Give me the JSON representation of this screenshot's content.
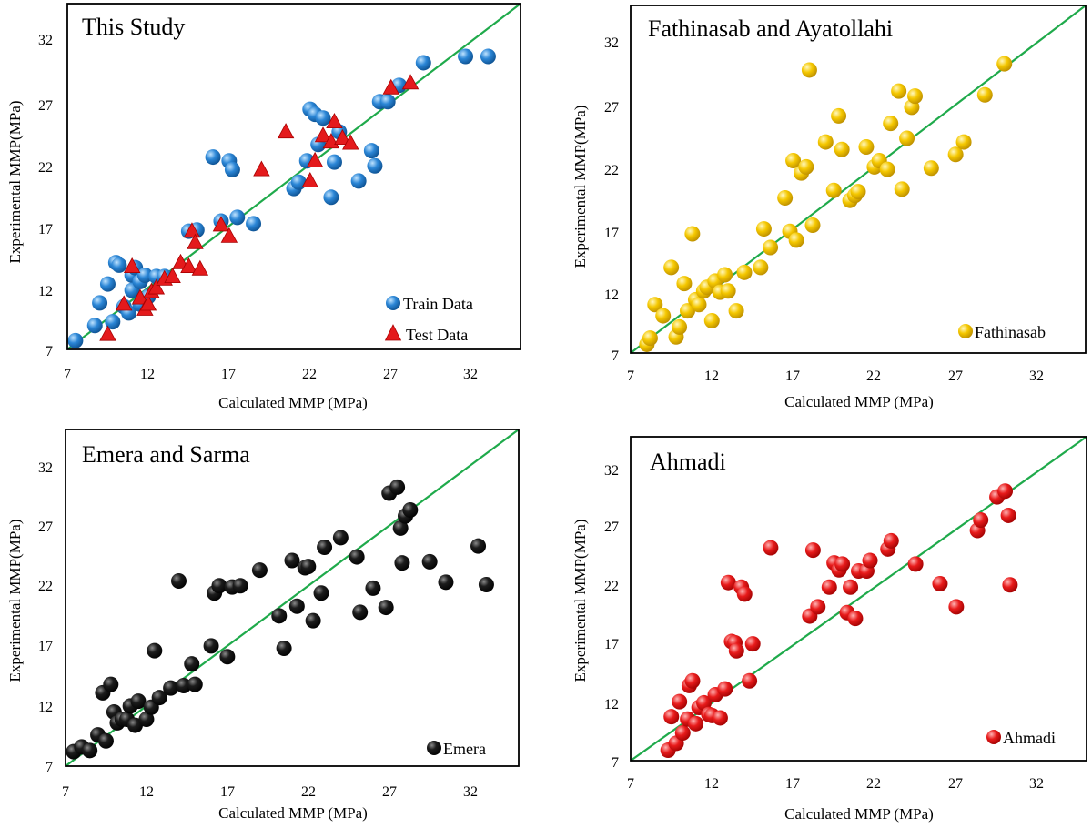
{
  "colors": {
    "train": "#1f78c8",
    "test": "#e41a1c",
    "fathinasab": "#f2c200",
    "emera": "#0a0a0a",
    "ahmadi": "#e41a1c",
    "diagonal": "#1faa4b"
  },
  "chart_data": [
    {
      "type": "scatter",
      "title": "This Study",
      "xlabel": "Calculated MMP (MPa)",
      "ylabel": "Experimental MMP(MPa)",
      "xlim": [
        7,
        35
      ],
      "ylim": [
        7,
        34.5
      ],
      "xticks": [
        "7",
        "12",
        "17",
        "22",
        "27",
        "32"
      ],
      "yticks": [
        "7",
        "12",
        "17",
        "22",
        "27",
        "32"
      ],
      "reference_line": "y = x",
      "series": [
        {
          "name": "Train Data",
          "marker": "circle",
          "color": "#1f78c8",
          "x": [
            7.5,
            8.7,
            9.0,
            9.5,
            9.8,
            10.0,
            10.2,
            10.5,
            10.8,
            11.0,
            11.2,
            11.0,
            11.5,
            11.8,
            12.0,
            11.5,
            12.5,
            13.0,
            14.5,
            15.0,
            16.0,
            16.5,
            17.0,
            17.2,
            17.5,
            18.5,
            21.0,
            21.3,
            21.8,
            22.0,
            22.3,
            22.5,
            22.8,
            23.3,
            23.5,
            23.8,
            25.0,
            25.8,
            26.0,
            26.3,
            26.8,
            27.5,
            29.0,
            31.6,
            33.0
          ],
          "y": [
            7.7,
            8.9,
            10.7,
            12.2,
            9.2,
            13.9,
            13.7,
            10.4,
            9.9,
            12.9,
            13.5,
            11.7,
            12.4,
            12.9,
            11.2,
            10.6,
            12.8,
            12.8,
            16.4,
            16.5,
            22.3,
            17.2,
            22.0,
            21.3,
            17.5,
            17.0,
            19.8,
            20.3,
            22.0,
            26.1,
            25.7,
            23.3,
            25.4,
            19.1,
            21.9,
            24.3,
            20.4,
            22.8,
            21.6,
            26.7,
            26.7,
            28.0,
            29.8,
            30.3,
            30.3
          ]
        },
        {
          "name": "Test Data",
          "marker": "triangle",
          "color": "#e41a1c",
          "x": [
            9.5,
            10.5,
            11.0,
            11.5,
            11.8,
            12.0,
            12.2,
            12.5,
            13.0,
            13.5,
            14.0,
            14.5,
            14.7,
            14.9,
            15.2,
            16.5,
            17.0,
            19.0,
            20.5,
            22.0,
            22.3,
            22.8,
            23.3,
            23.5,
            24.0,
            24.5,
            27.0,
            28.2
          ],
          "y": [
            8.2,
            10.6,
            13.6,
            11.1,
            10.2,
            10.6,
            11.6,
            11.9,
            12.6,
            12.8,
            13.9,
            13.6,
            16.4,
            15.5,
            13.4,
            16.9,
            16.0,
            21.3,
            24.3,
            20.4,
            22.0,
            24.0,
            23.5,
            25.1,
            23.8,
            23.4,
            27.8,
            28.2
          ]
        }
      ]
    },
    {
      "type": "scatter",
      "title": "Fathinasab and Ayatollahi",
      "xlabel": "Calculated MMP (MPa)",
      "ylabel": "Experimental MMP(MPa)",
      "xlim": [
        7,
        35
      ],
      "ylim": [
        7,
        35
      ],
      "xticks": [
        "7",
        "12",
        "17",
        "22",
        "27",
        "32"
      ],
      "yticks": [
        "7",
        "12",
        "17",
        "22",
        "27",
        "32"
      ],
      "reference_line": "y = x",
      "series": [
        {
          "name": "Fathinasab",
          "marker": "circle",
          "color": "#f2c200",
          "x": [
            8.0,
            8.2,
            8.5,
            9.0,
            9.5,
            9.8,
            10.0,
            10.3,
            10.5,
            10.8,
            11.0,
            11.2,
            11.5,
            11.7,
            12.0,
            12.2,
            12.5,
            12.8,
            13.0,
            13.5,
            14.0,
            15.0,
            15.2,
            15.6,
            16.5,
            16.8,
            17.0,
            17.2,
            17.5,
            17.8,
            18.0,
            18.2,
            19.0,
            19.5,
            19.8,
            20.0,
            20.5,
            20.8,
            21.0,
            21.5,
            22.0,
            22.3,
            22.8,
            23.0,
            23.5,
            23.7,
            24.0,
            24.3,
            24.5,
            25.5,
            27.0,
            27.5,
            28.8,
            30.0
          ],
          "y": [
            7.7,
            8.2,
            10.9,
            10.0,
            13.9,
            8.3,
            9.1,
            12.6,
            10.4,
            16.6,
            11.3,
            10.9,
            12.0,
            12.3,
            9.6,
            12.8,
            11.9,
            13.3,
            12.0,
            10.4,
            13.5,
            13.9,
            17.0,
            15.5,
            19.5,
            16.8,
            22.5,
            16.1,
            21.5,
            22.0,
            29.8,
            17.3,
            24.0,
            20.1,
            26.1,
            23.4,
            19.3,
            19.7,
            20.0,
            23.6,
            22.0,
            22.5,
            21.8,
            25.5,
            28.1,
            20.2,
            24.3,
            26.8,
            27.7,
            21.9,
            23.0,
            24.0,
            27.8,
            30.3
          ]
        }
      ]
    },
    {
      "type": "scatter",
      "title": "Emera and Sarma",
      "xlabel": "Calculated MMP (MPa)",
      "ylabel": "Experimental MMP(MPa)",
      "xlim": [
        7,
        35
      ],
      "ylim": [
        7,
        35
      ],
      "xticks": [
        "7",
        "12",
        "17",
        "22",
        "27",
        "32"
      ],
      "yticks": [
        "7",
        "12",
        "17",
        "22",
        "27",
        "32"
      ],
      "reference_line": "y = x",
      "series": [
        {
          "name": "Emera",
          "marker": "circle",
          "color": "#0a0a0a",
          "x": [
            7.5,
            8.0,
            8.5,
            9.0,
            9.3,
            9.5,
            9.8,
            10.0,
            10.2,
            10.5,
            10.8,
            11.0,
            11.3,
            11.5,
            12.0,
            12.3,
            12.5,
            12.8,
            13.5,
            14.0,
            14.3,
            14.8,
            15.0,
            16.0,
            16.2,
            16.5,
            17.0,
            17.3,
            17.8,
            19.0,
            20.2,
            20.5,
            21.0,
            21.3,
            21.8,
            22.0,
            22.3,
            22.8,
            23.0,
            24.0,
            25.0,
            25.2,
            26.0,
            26.8,
            27.0,
            27.5,
            27.7,
            27.8,
            28.0,
            28.3,
            29.5,
            30.5,
            32.5,
            33.0
          ],
          "y": [
            8.2,
            8.6,
            8.3,
            9.6,
            13.1,
            9.1,
            13.8,
            11.5,
            10.6,
            10.9,
            10.9,
            12.0,
            10.4,
            12.4,
            10.9,
            11.9,
            16.6,
            12.7,
            13.5,
            22.4,
            13.7,
            15.5,
            13.8,
            17.0,
            21.4,
            22.0,
            16.1,
            21.9,
            22.0,
            23.3,
            19.5,
            16.8,
            24.1,
            20.3,
            23.5,
            23.6,
            19.1,
            21.4,
            25.2,
            26.0,
            24.4,
            19.8,
            21.8,
            20.2,
            29.7,
            30.2,
            26.8,
            23.9,
            27.8,
            28.3,
            24.0,
            22.3,
            25.3,
            22.1
          ]
        }
      ]
    },
    {
      "type": "scatter",
      "title": "Ahmadi",
      "xlabel": "Calculated MMP (MPa)",
      "ylabel": "Experimental MMP(MPa)",
      "xlim": [
        7,
        35
      ],
      "ylim": [
        7,
        35
      ],
      "xticks": [
        "7",
        "12",
        "17",
        "22",
        "27",
        "32"
      ],
      "yticks": [
        "7",
        "12",
        "17",
        "22",
        "27",
        "32"
      ],
      "reference_line": "y = x",
      "series": [
        {
          "name": "Ahmadi",
          "marker": "circle",
          "color": "#e41a1c",
          "x": [
            9.3,
            9.5,
            9.8,
            10.0,
            10.2,
            10.5,
            10.6,
            10.8,
            11.0,
            11.2,
            11.5,
            11.8,
            12.0,
            12.2,
            12.5,
            12.8,
            13.0,
            13.2,
            13.4,
            13.5,
            13.8,
            14.0,
            14.3,
            14.5,
            15.6,
            18.0,
            18.2,
            18.5,
            19.2,
            19.5,
            19.8,
            20.0,
            20.3,
            20.5,
            20.8,
            21.0,
            21.5,
            21.7,
            22.8,
            23.0,
            24.5,
            26.0,
            27.0,
            28.3,
            28.5,
            29.5,
            30.0,
            30.2,
            30.3
          ],
          "y": [
            7.9,
            10.8,
            8.5,
            12.1,
            9.4,
            10.6,
            13.5,
            13.9,
            10.2,
            11.6,
            12.0,
            11.0,
            10.9,
            12.7,
            10.7,
            13.2,
            22.4,
            17.3,
            17.2,
            16.5,
            22.0,
            21.4,
            13.9,
            17.1,
            25.4,
            19.5,
            25.2,
            20.3,
            22.0,
            24.1,
            23.5,
            24.0,
            19.8,
            22.0,
            19.3,
            23.4,
            23.4,
            24.3,
            25.3,
            26.0,
            24.0,
            22.3,
            20.3,
            26.9,
            27.8,
            29.8,
            30.3,
            28.2,
            22.2
          ]
        }
      ]
    }
  ]
}
